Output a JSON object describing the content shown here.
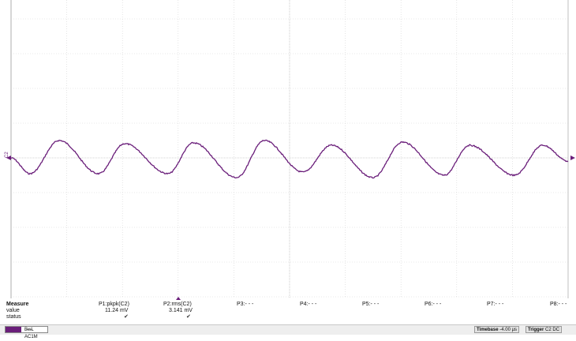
{
  "channel_label": "C2",
  "trace_color": "#6a1e7a",
  "measure": {
    "header": "Measure",
    "row_labels": [
      "value",
      "status"
    ],
    "params": [
      {
        "name": "P1:pkpk(C2)",
        "value": "11.24 mV",
        "status": "check"
      },
      {
        "name": "P2:rms(C2)",
        "value": "3.141 mV",
        "status": "check"
      },
      {
        "name": "P3:- - -",
        "value": "",
        "status": ""
      },
      {
        "name": "P4:- - -",
        "value": "",
        "status": ""
      },
      {
        "name": "P5:- - -",
        "value": "",
        "status": ""
      },
      {
        "name": "P6:- - -",
        "value": "",
        "status": ""
      },
      {
        "name": "P7:- - -",
        "value": "",
        "status": ""
      },
      {
        "name": "P8:- - -",
        "value": "",
        "status": ""
      }
    ],
    "check_glyph": "✔"
  },
  "bottom": {
    "channel_descriptor": "B̶w̶L AC1M",
    "timebase_label": "Timebase",
    "timebase_value": "-4.00 µs",
    "trigger_label": "Trigger",
    "trigger_value": "C2 DC"
  }
}
